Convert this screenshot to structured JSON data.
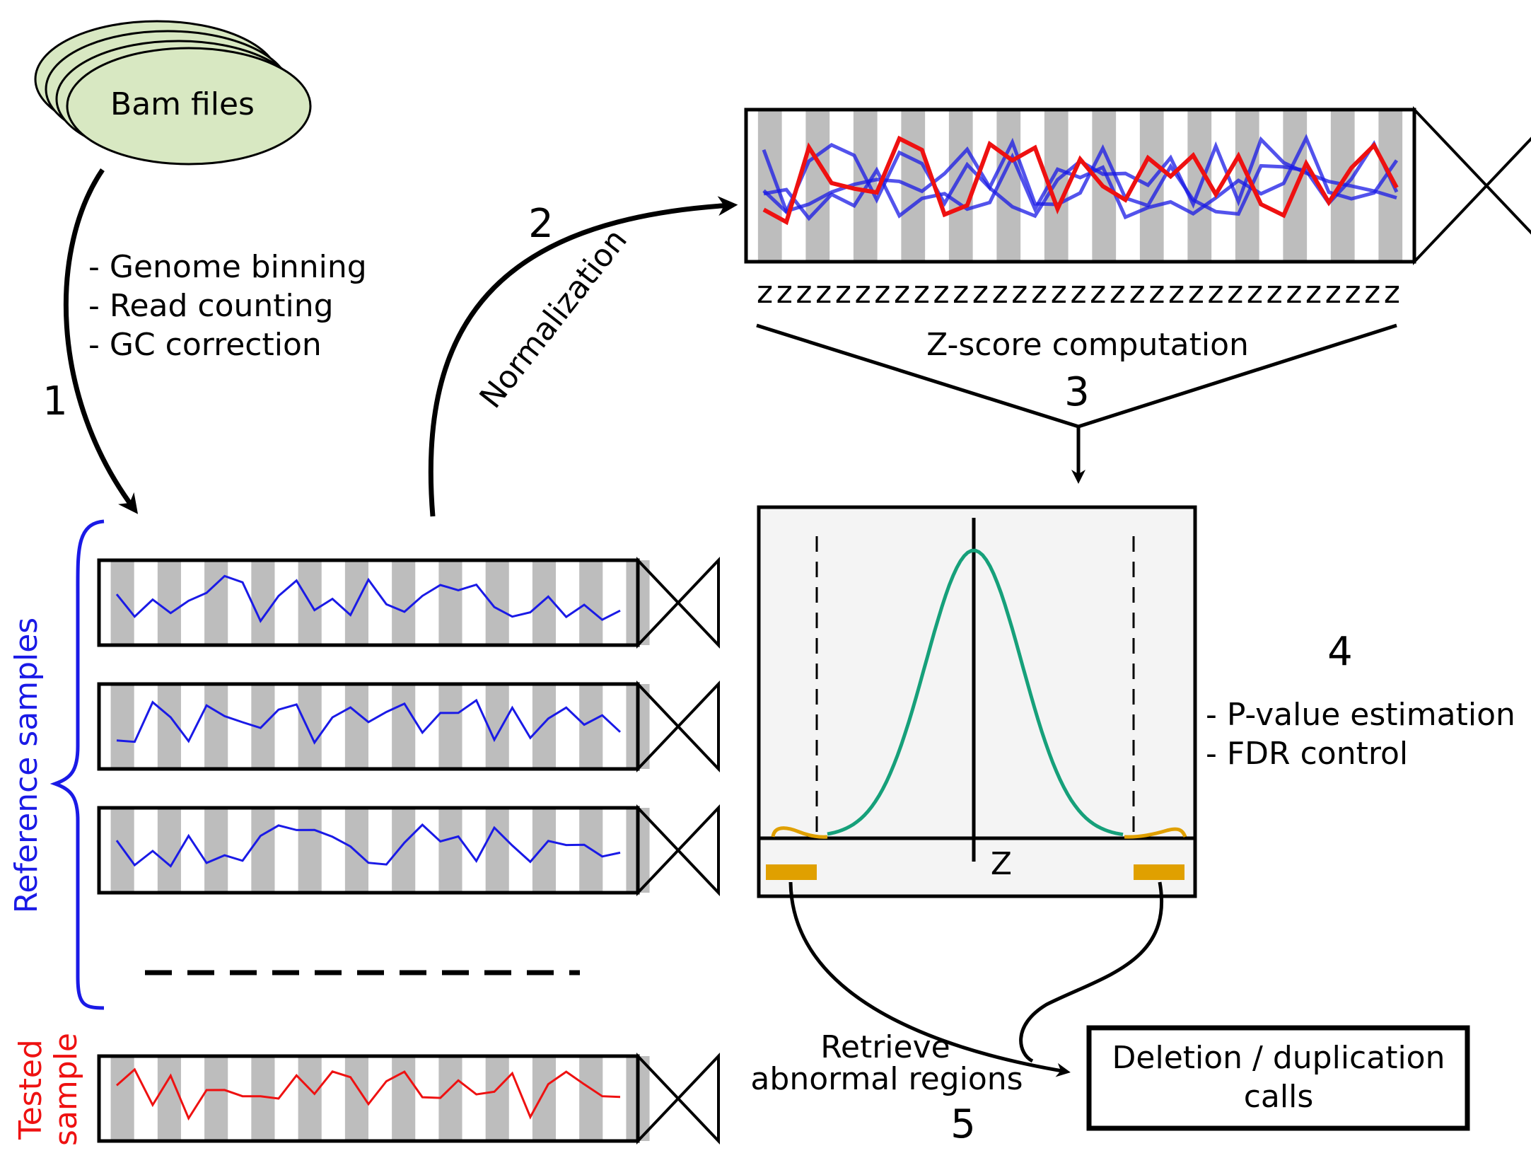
{
  "bam_files": {
    "label": "Bam files"
  },
  "step1": {
    "number": "1",
    "items": [
      "- Genome binning",
      "- Read counting",
      "- GC correction"
    ]
  },
  "step2": {
    "number": "2",
    "label": "Normalization"
  },
  "step3": {
    "number": "3",
    "label": "Z-score computation",
    "z_row": "zzzzzzzzzzzzzzzzzzzzzzzzzzzzzzzzz"
  },
  "step4": {
    "number": "4",
    "items": [
      "- P-value estimation",
      "- FDR control"
    ],
    "axis_label": "Z"
  },
  "step5": {
    "number": "5",
    "label_line1": "Retrieve",
    "label_line2": "abnormal regions"
  },
  "result": {
    "line1": "Deletion / duplication",
    "line2": "calls"
  },
  "groups": {
    "reference": "Reference samples",
    "tested_line1": "Tested",
    "tested_line2": "sample"
  },
  "colors": {
    "bam_fill": "#d8e8c2",
    "stripe": "#bdbdbd",
    "reference": "#1a1ae6",
    "tested": "#ee1111",
    "curve": "#16a07a",
    "tail": "#e0a000",
    "panel_bg": "#f4f4f4"
  }
}
